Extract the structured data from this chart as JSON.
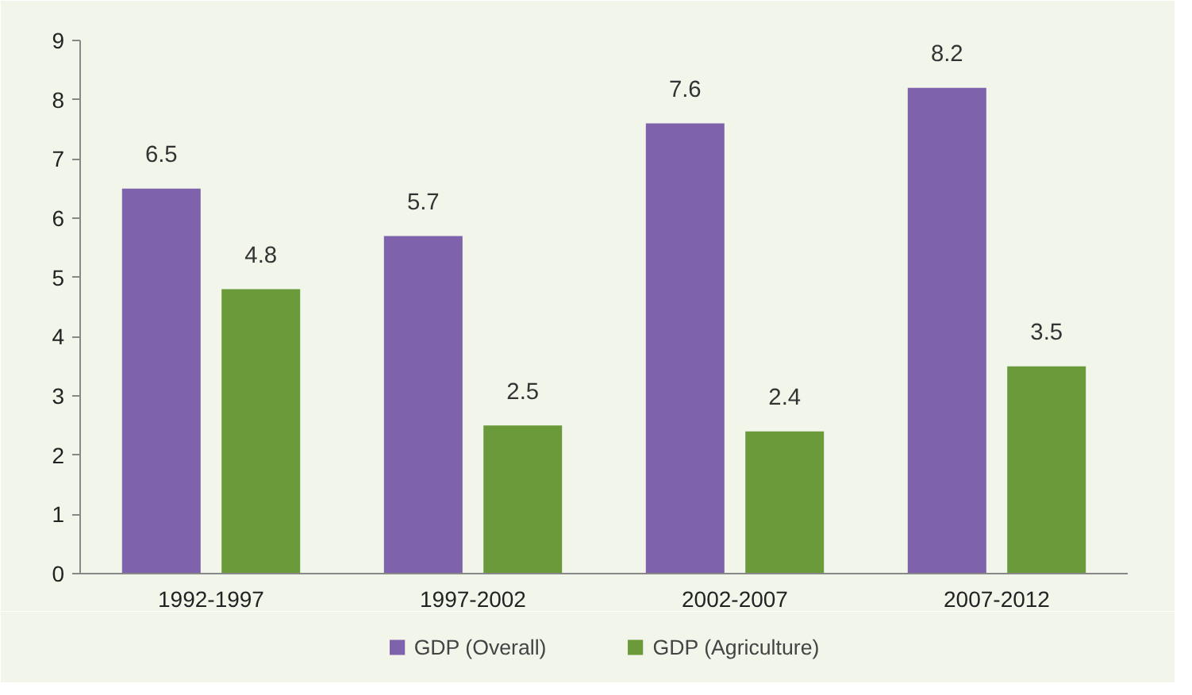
{
  "chart_data": {
    "type": "bar",
    "categories": [
      "1992-1997",
      "1997-2002",
      "2002-2007",
      "2007-2012"
    ],
    "series": [
      {
        "name": "GDP (Overall)",
        "color": "#7e62ab",
        "values": [
          6.5,
          5.7,
          7.6,
          8.2
        ]
      },
      {
        "name": "GDP (Agriculture)",
        "color": "#6b9a3b",
        "values": [
          4.8,
          2.5,
          2.4,
          3.5
        ]
      }
    ],
    "ylim": [
      0,
      9
    ],
    "yticks": [
      0,
      1,
      2,
      3,
      4,
      5,
      6,
      7,
      8,
      9
    ],
    "data_labels": true,
    "legend": "bottom",
    "grid": false
  }
}
